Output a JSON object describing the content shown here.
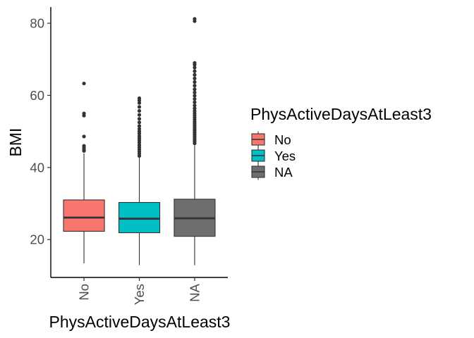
{
  "chart_data": {
    "type": "box",
    "xlabel": "PhysActiveDaysAtLeast3",
    "ylabel": "BMI",
    "ylim": [
      9.5,
      84.5
    ],
    "yticks": [
      20,
      40,
      60,
      80
    ],
    "ytick_labels": [
      "20",
      "40",
      "60",
      "80"
    ],
    "grid": false,
    "legend": {
      "title": "PhysActiveDaysAtLeast3",
      "position": "right",
      "entries": [
        "No",
        "Yes",
        "NA"
      ]
    },
    "categories": [
      "No",
      "Yes",
      "NA"
    ],
    "colors": {
      "No": "#F8766D",
      "Yes": "#00BFC4",
      "NA": "#6E6E6E"
    },
    "boxes": [
      {
        "category": "No",
        "whisker_low": 13.4,
        "q1": 22.3,
        "median": 26.1,
        "q3": 31.0,
        "whisker_high": 43.9,
        "outliers": [
          44.6,
          45.0,
          45.5,
          46.0,
          48.6,
          54.4,
          55.0,
          63.3
        ]
      },
      {
        "category": "Yes",
        "whisker_low": 12.9,
        "q1": 21.9,
        "median": 25.8,
        "q3": 30.3,
        "whisker_high": 42.7,
        "outliers": [
          43.2,
          43.8,
          44.4,
          45.0,
          45.6,
          46.2,
          46.9,
          47.5,
          48.1,
          48.7,
          49.4,
          50.0,
          50.7,
          51.5,
          52.5,
          53.5,
          54.6,
          55.7,
          56.8,
          57.9,
          58.6,
          59.2
        ]
      },
      {
        "category": "NA",
        "whisker_low": 12.9,
        "q1": 20.9,
        "median": 25.9,
        "q3": 31.2,
        "whisker_high": 46.2,
        "outliers": [
          46.7,
          47.2,
          47.7,
          48.2,
          48.7,
          49.2,
          49.7,
          50.2,
          50.7,
          51.2,
          51.7,
          52.2,
          52.7,
          53.3,
          53.9,
          54.5,
          55.1,
          55.7,
          56.4,
          57.2,
          58.1,
          59.0,
          59.9,
          60.8,
          61.7,
          62.7,
          63.7,
          64.7,
          65.7,
          66.7,
          67.7,
          68.5,
          69.0,
          80.6,
          81.2
        ]
      }
    ]
  }
}
